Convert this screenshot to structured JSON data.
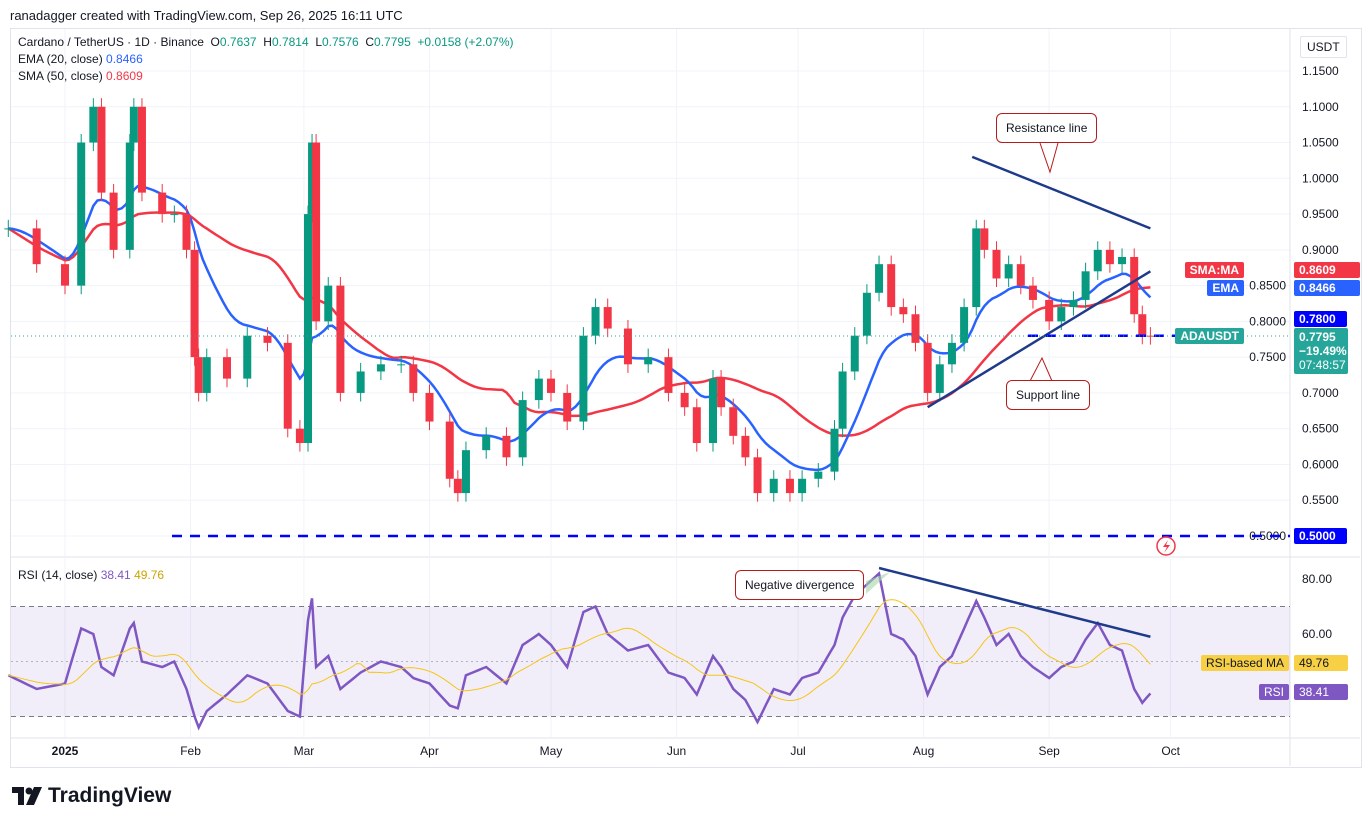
{
  "credit": "ranadagger created with TradingView.com, Sep 26, 2025 16:11 UTC",
  "legend": {
    "symbol": "Cardano / TetherUS · 1D · Binance",
    "o_label": "O",
    "o": "0.7637",
    "h_label": "H",
    "h": "0.7814",
    "l_label": "L",
    "l": "0.7576",
    "c_label": "C",
    "c": "0.7795",
    "change": "+0.0158 (+2.07%)",
    "ema_label": "EMA (20, close)",
    "ema": "0.8466",
    "sma_label": "SMA (50, close)",
    "sma": "0.8609",
    "rsi_label": "RSI (14, close)",
    "rsi": "38.41",
    "rsi_ma": "49.76"
  },
  "axis": {
    "currency": "USDT",
    "price_ticks": [
      "1.1500",
      "1.1000",
      "1.0500",
      "1.0000",
      "0.9500",
      "0.9000",
      "0.8500",
      "0.8000",
      "0.7500",
      "0.7000",
      "0.6500",
      "0.6000",
      "0.5500",
      "0.5000"
    ],
    "rsi_ticks": [
      "80.00",
      "60.00"
    ],
    "time_labels": [
      "2025",
      "Feb",
      "Mar",
      "Apr",
      "May",
      "Jun",
      "Jul",
      "Aug",
      "Sep",
      "Oct"
    ]
  },
  "tags": {
    "sma_name": "SMA:MA",
    "sma_val": "0.8609",
    "ema_name": "EMA",
    "ema_val": "0.8466",
    "level": "0.7800",
    "sym": "ADAUSDT",
    "price": "0.7795",
    "pct": "−19.49%",
    "countdown": "07:48:57",
    "support_level": "0.5000",
    "rsima_name": "RSI-based MA",
    "rsima_val": "49.76",
    "rsi_name": "RSI",
    "rsi_val": "38.41"
  },
  "annotations": {
    "resistance": "Resistance line",
    "support": "Support line",
    "divergence": "Negative divergence"
  },
  "logo": "TradingView",
  "colors": {
    "up": "#089981",
    "down": "#f23645",
    "ema": "#2962ff",
    "sma": "#f23645",
    "rsi": "#7e57c2",
    "rsi_ma": "#f5c518",
    "trend": "#1e3a8a",
    "level": "#0000ff"
  },
  "chart_data": {
    "type": "candlestick",
    "series_note": "",
    "dates": [
      "2024-12-18",
      "2024-12-25",
      "2025-01-01",
      "2025-01-05",
      "2025-01-08",
      "2025-01-10",
      "2025-01-13",
      "2025-01-17",
      "2025-01-18",
      "2025-01-20",
      "2025-01-25",
      "2025-01-28",
      "2025-01-31",
      "2025-02-02",
      "2025-02-03",
      "2025-02-05",
      "2025-02-10",
      "2025-02-15",
      "2025-02-20",
      "2025-02-25",
      "2025-02-28",
      "2025-03-02",
      "2025-03-03",
      "2025-03-04",
      "2025-03-07",
      "2025-03-10",
      "2025-03-15",
      "2025-03-20",
      "2025-03-25",
      "2025-03-28",
      "2025-04-01",
      "2025-04-06",
      "2025-04-08",
      "2025-04-10",
      "2025-04-15",
      "2025-04-20",
      "2025-04-24",
      "2025-04-28",
      "2025-05-01",
      "2025-05-05",
      "2025-05-09",
      "2025-05-12",
      "2025-05-15",
      "2025-05-20",
      "2025-05-25",
      "2025-05-30",
      "2025-06-03",
      "2025-06-06",
      "2025-06-10",
      "2025-06-12",
      "2025-06-15",
      "2025-06-18",
      "2025-06-21",
      "2025-06-25",
      "2025-06-29",
      "2025-07-02",
      "2025-07-06",
      "2025-07-10",
      "2025-07-12",
      "2025-07-15",
      "2025-07-18",
      "2025-07-21",
      "2025-07-24",
      "2025-07-27",
      "2025-07-30",
      "2025-08-02",
      "2025-08-05",
      "2025-08-08",
      "2025-08-11",
      "2025-08-14",
      "2025-08-16",
      "2025-08-19",
      "2025-08-22",
      "2025-08-25",
      "2025-08-28",
      "2025-09-01",
      "2025-09-04",
      "2025-09-07",
      "2025-09-10",
      "2025-09-13",
      "2025-09-16",
      "2025-09-19",
      "2025-09-22",
      "2025-09-24",
      "2025-09-26"
    ],
    "close": [
      0.93,
      0.88,
      0.85,
      1.05,
      1.1,
      0.98,
      0.9,
      1.05,
      1.1,
      0.98,
      0.95,
      0.95,
      0.9,
      0.75,
      0.7,
      0.75,
      0.72,
      0.78,
      0.77,
      0.65,
      0.63,
      0.95,
      1.05,
      0.8,
      0.85,
      0.7,
      0.73,
      0.74,
      0.74,
      0.7,
      0.66,
      0.58,
      0.56,
      0.62,
      0.64,
      0.61,
      0.69,
      0.72,
      0.7,
      0.66,
      0.78,
      0.82,
      0.79,
      0.74,
      0.75,
      0.7,
      0.68,
      0.63,
      0.72,
      0.68,
      0.64,
      0.61,
      0.56,
      0.58,
      0.56,
      0.58,
      0.59,
      0.65,
      0.73,
      0.78,
      0.84,
      0.88,
      0.82,
      0.81,
      0.77,
      0.7,
      0.74,
      0.77,
      0.82,
      0.93,
      0.9,
      0.86,
      0.88,
      0.85,
      0.83,
      0.8,
      0.82,
      0.83,
      0.87,
      0.9,
      0.88,
      0.89,
      0.81,
      0.78,
      0.7795
    ],
    "rsi": [
      45,
      40,
      42,
      62,
      60,
      48,
      45,
      62,
      64,
      50,
      48,
      50,
      40,
      30,
      26,
      32,
      38,
      45,
      42,
      32,
      30,
      65,
      73,
      48,
      52,
      40,
      46,
      50,
      48,
      44,
      42,
      34,
      33,
      45,
      48,
      42,
      56,
      60,
      56,
      48,
      68,
      70,
      60,
      54,
      56,
      46,
      44,
      38,
      52,
      48,
      40,
      36,
      28,
      40,
      38,
      44,
      46,
      56,
      66,
      74,
      78,
      82,
      60,
      58,
      52,
      38,
      48,
      52,
      62,
      72,
      66,
      56,
      60,
      52,
      48,
      44,
      48,
      50,
      58,
      64,
      56,
      54,
      40,
      35,
      38.41
    ],
    "ylim": [
      0.49,
      1.17
    ],
    "rsi_lim": [
      20,
      90
    ],
    "rsi_bands": [
      70,
      30
    ],
    "lines": {
      "resistance": [
        [
          "2025-08-13",
          1.03
        ],
        [
          "2025-09-26",
          0.93
        ]
      ],
      "support": [
        [
          "2025-08-02",
          0.68
        ],
        [
          "2025-09-26",
          0.87
        ]
      ],
      "level_050": 0.5,
      "level_078": 0.78,
      "rsi_trend": [
        [
          "2025-07-21",
          84
        ],
        [
          "2025-09-26",
          59
        ]
      ]
    }
  }
}
